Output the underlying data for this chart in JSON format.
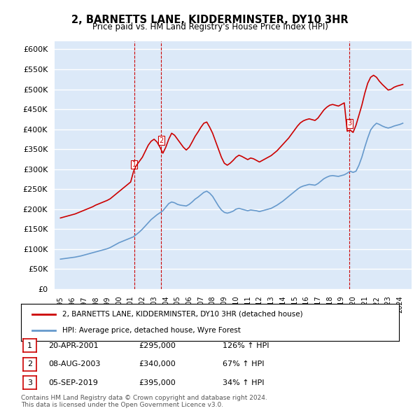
{
  "title": "2, BARNETTS LANE, KIDDERMINSTER, DY10 3HR",
  "subtitle": "Price paid vs. HM Land Registry's House Price Index (HPI)",
  "ylabel": "",
  "ylim": [
    0,
    620000
  ],
  "yticks": [
    0,
    50000,
    100000,
    150000,
    200000,
    250000,
    300000,
    350000,
    400000,
    450000,
    500000,
    550000,
    600000
  ],
  "background_color": "#dce9f8",
  "plot_bg": "#dce9f8",
  "grid_color": "white",
  "sale_color": "#cc0000",
  "hpi_color": "#6699cc",
  "dashed_color": "#cc0000",
  "legend_label_sale": "2, BARNETTS LANE, KIDDERMINSTER, DY10 3HR (detached house)",
  "legend_label_hpi": "HPI: Average price, detached house, Wyre Forest",
  "transactions": [
    {
      "num": 1,
      "date_str": "20-APR-2001",
      "price": 295000,
      "year": 2001.3,
      "hpi_pct": "126% ↑ HPI"
    },
    {
      "num": 2,
      "date_str": "08-AUG-2003",
      "price": 340000,
      "year": 2003.6,
      "hpi_pct": "67% ↑ HPI"
    },
    {
      "num": 3,
      "date_str": "05-SEP-2019",
      "price": 395000,
      "year": 2019.68,
      "hpi_pct": "34% ↑ HPI"
    }
  ],
  "footnote": "Contains HM Land Registry data © Crown copyright and database right 2024.\nThis data is licensed under the Open Government Licence v3.0.",
  "hpi_data_x": [
    1995.0,
    1995.25,
    1995.5,
    1995.75,
    1996.0,
    1996.25,
    1996.5,
    1996.75,
    1997.0,
    1997.25,
    1997.5,
    1997.75,
    1998.0,
    1998.25,
    1998.5,
    1998.75,
    1999.0,
    1999.25,
    1999.5,
    1999.75,
    2000.0,
    2000.25,
    2000.5,
    2000.75,
    2001.0,
    2001.25,
    2001.5,
    2001.75,
    2002.0,
    2002.25,
    2002.5,
    2002.75,
    2003.0,
    2003.25,
    2003.5,
    2003.75,
    2004.0,
    2004.25,
    2004.5,
    2004.75,
    2005.0,
    2005.25,
    2005.5,
    2005.75,
    2006.0,
    2006.25,
    2006.5,
    2006.75,
    2007.0,
    2007.25,
    2007.5,
    2007.75,
    2008.0,
    2008.25,
    2008.5,
    2008.75,
    2009.0,
    2009.25,
    2009.5,
    2009.75,
    2010.0,
    2010.25,
    2010.5,
    2010.75,
    2011.0,
    2011.25,
    2011.5,
    2011.75,
    2012.0,
    2012.25,
    2012.5,
    2012.75,
    2013.0,
    2013.25,
    2013.5,
    2013.75,
    2014.0,
    2014.25,
    2014.5,
    2014.75,
    2015.0,
    2015.25,
    2015.5,
    2015.75,
    2016.0,
    2016.25,
    2016.5,
    2016.75,
    2017.0,
    2017.25,
    2017.5,
    2017.75,
    2018.0,
    2018.25,
    2018.5,
    2018.75,
    2019.0,
    2019.25,
    2019.5,
    2019.75,
    2020.0,
    2020.25,
    2020.5,
    2020.75,
    2021.0,
    2021.25,
    2021.5,
    2021.75,
    2022.0,
    2022.25,
    2022.5,
    2022.75,
    2023.0,
    2023.25,
    2023.5,
    2023.75,
    2024.0,
    2024.25
  ],
  "hpi_data_y": [
    75000,
    76000,
    77000,
    78000,
    79000,
    80000,
    81500,
    83000,
    85000,
    87000,
    89000,
    91000,
    93000,
    95000,
    97000,
    99000,
    101000,
    104000,
    108000,
    112000,
    116000,
    119000,
    122000,
    125000,
    128000,
    131000,
    137000,
    143000,
    150000,
    158000,
    166000,
    174000,
    180000,
    186000,
    191000,
    196000,
    205000,
    214000,
    218000,
    216000,
    212000,
    210000,
    209000,
    208000,
    212000,
    218000,
    225000,
    230000,
    236000,
    242000,
    245000,
    240000,
    232000,
    220000,
    208000,
    198000,
    192000,
    190000,
    192000,
    195000,
    200000,
    202000,
    200000,
    198000,
    196000,
    198000,
    197000,
    196000,
    194000,
    196000,
    198000,
    200000,
    202000,
    206000,
    210000,
    215000,
    220000,
    226000,
    232000,
    238000,
    244000,
    250000,
    255000,
    258000,
    260000,
    262000,
    261000,
    260000,
    264000,
    270000,
    276000,
    280000,
    283000,
    284000,
    283000,
    282000,
    284000,
    286000,
    290000,
    295000,
    292000,
    295000,
    310000,
    330000,
    355000,
    378000,
    398000,
    408000,
    415000,
    412000,
    408000,
    405000,
    403000,
    405000,
    408000,
    410000,
    412000,
    415000
  ],
  "sale_data_x": [
    1995.0,
    1995.25,
    1995.5,
    1995.75,
    1996.0,
    1996.25,
    1996.5,
    1996.75,
    1997.0,
    1997.25,
    1997.5,
    1997.75,
    1998.0,
    1998.25,
    1998.5,
    1998.75,
    1999.0,
    1999.25,
    1999.5,
    1999.75,
    2000.0,
    2000.25,
    2000.5,
    2000.75,
    2001.0,
    2001.25,
    2001.5,
    2001.75,
    2002.0,
    2002.25,
    2002.5,
    2002.75,
    2003.0,
    2003.25,
    2003.5,
    2003.75,
    2004.0,
    2004.25,
    2004.5,
    2004.75,
    2005.0,
    2005.25,
    2005.5,
    2005.75,
    2006.0,
    2006.25,
    2006.5,
    2006.75,
    2007.0,
    2007.25,
    2007.5,
    2007.75,
    2008.0,
    2008.25,
    2008.5,
    2008.75,
    2009.0,
    2009.25,
    2009.5,
    2009.75,
    2010.0,
    2010.25,
    2010.5,
    2010.75,
    2011.0,
    2011.25,
    2011.5,
    2011.75,
    2012.0,
    2012.25,
    2012.5,
    2012.75,
    2013.0,
    2013.25,
    2013.5,
    2013.75,
    2014.0,
    2014.25,
    2014.5,
    2014.75,
    2015.0,
    2015.25,
    2015.5,
    2015.75,
    2016.0,
    2016.25,
    2016.5,
    2016.75,
    2017.0,
    2017.25,
    2017.5,
    2017.75,
    2018.0,
    2018.25,
    2018.5,
    2018.75,
    2019.0,
    2019.25,
    2019.5,
    2019.75,
    2020.0,
    2020.25,
    2020.5,
    2020.75,
    2021.0,
    2021.25,
    2021.5,
    2021.75,
    2022.0,
    2022.25,
    2022.5,
    2022.75,
    2023.0,
    2023.25,
    2023.5,
    2023.75,
    2024.0,
    2024.25
  ],
  "sale_data_y": [
    178000,
    180000,
    182000,
    184000,
    186000,
    188000,
    191000,
    194000,
    197000,
    200000,
    203000,
    206000,
    210000,
    213000,
    216000,
    219000,
    222000,
    226000,
    232000,
    238000,
    244000,
    250000,
    256000,
    262000,
    268000,
    295000,
    310000,
    320000,
    330000,
    345000,
    360000,
    370000,
    375000,
    368000,
    355000,
    340000,
    355000,
    375000,
    390000,
    385000,
    375000,
    365000,
    355000,
    348000,
    355000,
    368000,
    382000,
    393000,
    405000,
    415000,
    418000,
    405000,
    390000,
    370000,
    350000,
    330000,
    315000,
    310000,
    315000,
    322000,
    330000,
    335000,
    332000,
    328000,
    324000,
    328000,
    326000,
    322000,
    318000,
    322000,
    326000,
    330000,
    334000,
    340000,
    346000,
    354000,
    362000,
    370000,
    378000,
    388000,
    398000,
    408000,
    416000,
    421000,
    424000,
    426000,
    424000,
    422000,
    428000,
    438000,
    448000,
    455000,
    460000,
    462000,
    460000,
    458000,
    462000,
    466000,
    395000,
    398000,
    392000,
    410000,
    435000,
    460000,
    490000,
    515000,
    530000,
    535000,
    530000,
    520000,
    512000,
    505000,
    498000,
    500000,
    505000,
    508000,
    510000,
    512000
  ]
}
